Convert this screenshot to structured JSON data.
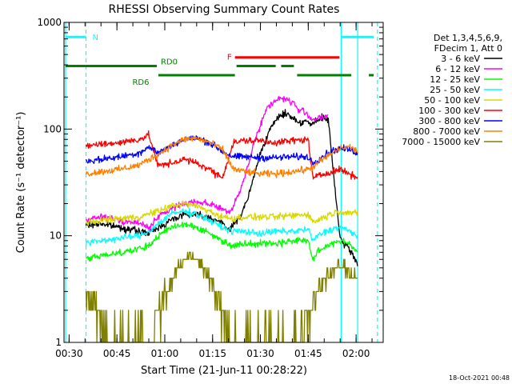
{
  "chart_data": {
    "type": "line",
    "title": "RHESSI Observing Summary Count Rates",
    "xlabel": "Start Time (21-Jun-11 00:28:22)",
    "ylabel": "Count Rate (s⁻¹ detector⁻¹)",
    "yscale": "log",
    "xlim": [
      28.4,
      128.5
    ],
    "ylim": [
      1,
      1000
    ],
    "x_units": "minutes after 00:00 UT, 21-Jun-11",
    "x_ticks": [
      {
        "v": 30,
        "label": "00:30"
      },
      {
        "v": 45,
        "label": "00:45"
      },
      {
        "v": 60,
        "label": "01:00"
      },
      {
        "v": 75,
        "label": "01:15"
      },
      {
        "v": 90,
        "label": "01:30"
      },
      {
        "v": 105,
        "label": "01:45"
      },
      {
        "v": 120,
        "label": "02:00"
      }
    ],
    "y_ticks": [
      {
        "v": 1,
        "label": "1"
      },
      {
        "v": 10,
        "label": "10"
      },
      {
        "v": 100,
        "label": "100"
      },
      {
        "v": 1000,
        "label": "1000"
      }
    ],
    "legend": {
      "header": [
        "Det 1,3,4,5,6,9,",
        "FDecim 1, Att 0"
      ],
      "placement": "right"
    },
    "series": [
      {
        "name": "3 - 6 keV",
        "color": "#000000",
        "x": [
          35.3,
          40,
          46,
          52,
          55,
          58,
          62,
          66,
          70,
          74,
          78,
          80,
          82,
          84,
          86,
          88,
          90,
          92,
          94,
          96,
          98,
          100,
          102,
          104,
          106,
          108,
          110,
          111.3,
          115,
          117.3,
          119.8,
          120.5
        ],
        "y": [
          12.5,
          13,
          12,
          11,
          10.5,
          12,
          14,
          16,
          16,
          15,
          13,
          11.5,
          13,
          16,
          22,
          36,
          60,
          85,
          110,
          135,
          140,
          130,
          115,
          120,
          110,
          120,
          130,
          120,
          9,
          8,
          6,
          5.5
        ]
      },
      {
        "name": "6 - 12 keV",
        "color": "#ff00ff",
        "x": [
          35.3,
          40,
          46,
          52,
          55,
          58,
          62,
          66,
          70,
          74,
          78,
          80,
          82,
          84,
          86,
          88,
          90,
          92,
          94,
          96,
          98,
          100,
          102,
          104,
          106,
          108,
          110,
          111.3
        ],
        "y": [
          14,
          15,
          14,
          13,
          12,
          15,
          18,
          20,
          21,
          20,
          18,
          16,
          20,
          28,
          45,
          75,
          110,
          155,
          180,
          195,
          190,
          180,
          150,
          145,
          125,
          125,
          130,
          135
        ]
      },
      {
        "name": "12 - 25 keV",
        "color": "#00ff00",
        "x": [
          35.3,
          40,
          46,
          52,
          55,
          58,
          62,
          66,
          70,
          74,
          78,
          81.6,
          85,
          90,
          95,
          100,
          105,
          106.4,
          108,
          112,
          115,
          118,
          120.5
        ],
        "y": [
          6,
          6.5,
          7,
          7.5,
          8,
          10,
          12,
          13,
          12,
          10.5,
          9,
          8,
          8.5,
          8.5,
          8.5,
          9,
          9,
          6,
          7,
          8.5,
          9,
          8.5,
          7
        ]
      },
      {
        "name": "25 - 50 keV",
        "color": "#00ffff",
        "x": [
          35.3,
          40,
          46,
          52,
          55,
          58,
          62,
          66,
          70,
          74,
          78,
          81.6,
          85,
          90,
          95,
          100,
          105,
          106.4,
          108,
          112,
          115,
          118,
          120.5
        ],
        "y": [
          8.5,
          9,
          9.5,
          10,
          11,
          13,
          16,
          17,
          16,
          14,
          12,
          11,
          11,
          10.5,
          11,
          11,
          11.5,
          9,
          10,
          11.5,
          12,
          11,
          10
        ]
      },
      {
        "name": "50 - 100 keV",
        "color": "#d8d800",
        "x": [
          35.3,
          40,
          46,
          52,
          55,
          58,
          62,
          66,
          70,
          74,
          78,
          81.6,
          85,
          90,
          95,
          100,
          105,
          106.4,
          108,
          112,
          115,
          118,
          120.5
        ],
        "y": [
          13,
          14,
          14.5,
          15,
          16,
          17,
          19,
          20,
          19,
          17,
          15,
          14.5,
          15,
          15,
          15,
          15.5,
          16,
          13.5,
          14,
          16,
          17,
          16.5,
          16
        ]
      },
      {
        "name": "100 - 300 keV",
        "color": "#ff0000",
        "x": [
          35.3,
          40,
          46,
          52,
          55,
          58,
          62,
          66,
          70,
          74,
          78,
          81.6,
          85,
          90,
          95,
          100,
          105,
          106.4,
          108,
          112,
          115,
          118,
          120.5
        ],
        "y": [
          70,
          72,
          75,
          80,
          88,
          45,
          48,
          52,
          48,
          42,
          35,
          75,
          78,
          78,
          75,
          78,
          80,
          35,
          36,
          40,
          42,
          38,
          35
        ]
      },
      {
        "name": "300 - 800 keV",
        "color": "#0000ff",
        "x": [
          35.3,
          40,
          46,
          52,
          55,
          58,
          62,
          66,
          70,
          74,
          78,
          81.6,
          85,
          90,
          95,
          100,
          105,
          106.4,
          108,
          112,
          115,
          118,
          120.5
        ],
        "y": [
          50,
          52,
          55,
          60,
          68,
          60,
          70,
          80,
          82,
          75,
          62,
          55,
          55,
          54,
          54,
          55,
          55,
          48,
          52,
          62,
          66,
          64,
          60
        ]
      },
      {
        "name": "800 - 7000 keV",
        "color": "#ff8000",
        "x": [
          35.3,
          40,
          46,
          52,
          55,
          58,
          62,
          66,
          70,
          74,
          78,
          81.6,
          85,
          90,
          95,
          100,
          105,
          106.4,
          108,
          112,
          115,
          118,
          120.5
        ],
        "y": [
          38,
          40,
          42,
          46,
          52,
          58,
          70,
          80,
          82,
          75,
          65,
          42,
          40,
          38,
          38,
          40,
          42,
          44,
          48,
          58,
          66,
          68,
          62
        ]
      },
      {
        "name": "7000 - 15000 keV",
        "color": "#808000",
        "x": [
          35.3,
          38,
          41,
          44,
          47,
          50,
          53,
          55,
          58,
          60,
          62,
          64,
          66,
          68,
          70,
          72,
          74,
          76,
          78,
          80,
          82,
          85,
          88,
          90,
          92,
          94,
          96,
          98,
          100,
          102,
          104,
          106,
          108,
          110,
          112,
          114,
          116,
          118,
          120.5
        ],
        "y": [
          3,
          2,
          1.5,
          1,
          1,
          1,
          1.5,
          1,
          2,
          3,
          3.5,
          5,
          6,
          6.5,
          6,
          5,
          4,
          3,
          2,
          1,
          1,
          1,
          1,
          1,
          1.5,
          1,
          1,
          1,
          1,
          1,
          1.5,
          2,
          3,
          4,
          4.5,
          5,
          5,
          4.5,
          4
        ]
      }
    ],
    "vlines": [
      {
        "x": 28.9,
        "color": "#00ffff",
        "style": "solid"
      },
      {
        "x": 35.3,
        "color": "#00ffff",
        "style": "dashed"
      },
      {
        "x": 115.3,
        "color": "#00ffff",
        "style": "solid"
      },
      {
        "x": 120.5,
        "color": "#00ffff",
        "style": "solid"
      },
      {
        "x": 126.7,
        "color": "#00ffff",
        "style": "dashed"
      }
    ],
    "bars": [
      {
        "label": "N",
        "color": "#00ffff",
        "y": 730,
        "segments": [
          [
            28.9,
            35.3
          ],
          [
            115.3,
            125.5
          ]
        ]
      },
      {
        "label": "F",
        "color": "#ff0000",
        "y": 470,
        "segments": [
          [
            82,
            114.8
          ]
        ]
      },
      {
        "label": "RD0",
        "color": "#008000",
        "y": 390,
        "segments": [
          [
            28.9,
            57.5
          ],
          [
            82.5,
            94.8
          ],
          [
            96.5,
            100.5
          ]
        ]
      },
      {
        "label": "RD6",
        "color": "#008000",
        "y": 320,
        "segments": [
          [
            58,
            82
          ],
          [
            101.5,
            118.5
          ],
          [
            124,
            125.5
          ]
        ]
      }
    ]
  },
  "footer_timestamp": "18-Oct-2021 00:48"
}
